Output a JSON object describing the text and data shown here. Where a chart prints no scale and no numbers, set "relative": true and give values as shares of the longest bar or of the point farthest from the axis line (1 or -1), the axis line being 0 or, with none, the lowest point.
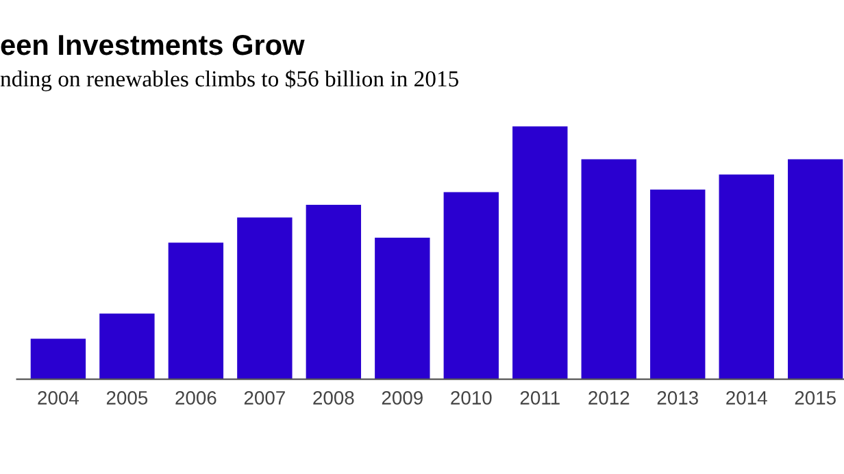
{
  "chart_data": {
    "type": "bar",
    "title": "een Investments Grow",
    "subtitle": "nding on renewables climbs to $56 billion in 2015",
    "categories": [
      "2004",
      "2005",
      "2006",
      "2007",
      "2008",
      "2009",
      "2010",
      "2011",
      "2012",
      "2013",
      "2014",
      "2015"
    ],
    "values": [
      0.16,
      0.26,
      0.54,
      0.64,
      0.69,
      0.56,
      0.74,
      1,
      0.87,
      0.75,
      0.81,
      0.87
    ],
    "color": "#2a00d0",
    "relative": true
  }
}
